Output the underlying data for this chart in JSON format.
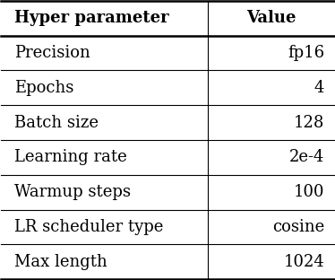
{
  "headers": [
    "Hyper parameter",
    "Value"
  ],
  "rows": [
    [
      "Precision",
      "fp16"
    ],
    [
      "Epochs",
      "4"
    ],
    [
      "Batch size",
      "128"
    ],
    [
      "Learning rate",
      "2e-4"
    ],
    [
      "Warmup steps",
      "100"
    ],
    [
      "LR scheduler type",
      "cosine"
    ],
    [
      "Max length",
      "1024"
    ]
  ],
  "col_split": 0.62,
  "header_fontsize": 13,
  "row_fontsize": 13,
  "background_color": "#ffffff",
  "text_color": "#000000",
  "line_color": "#000000",
  "line_lw_thick": 1.8,
  "line_lw_thin": 0.8
}
